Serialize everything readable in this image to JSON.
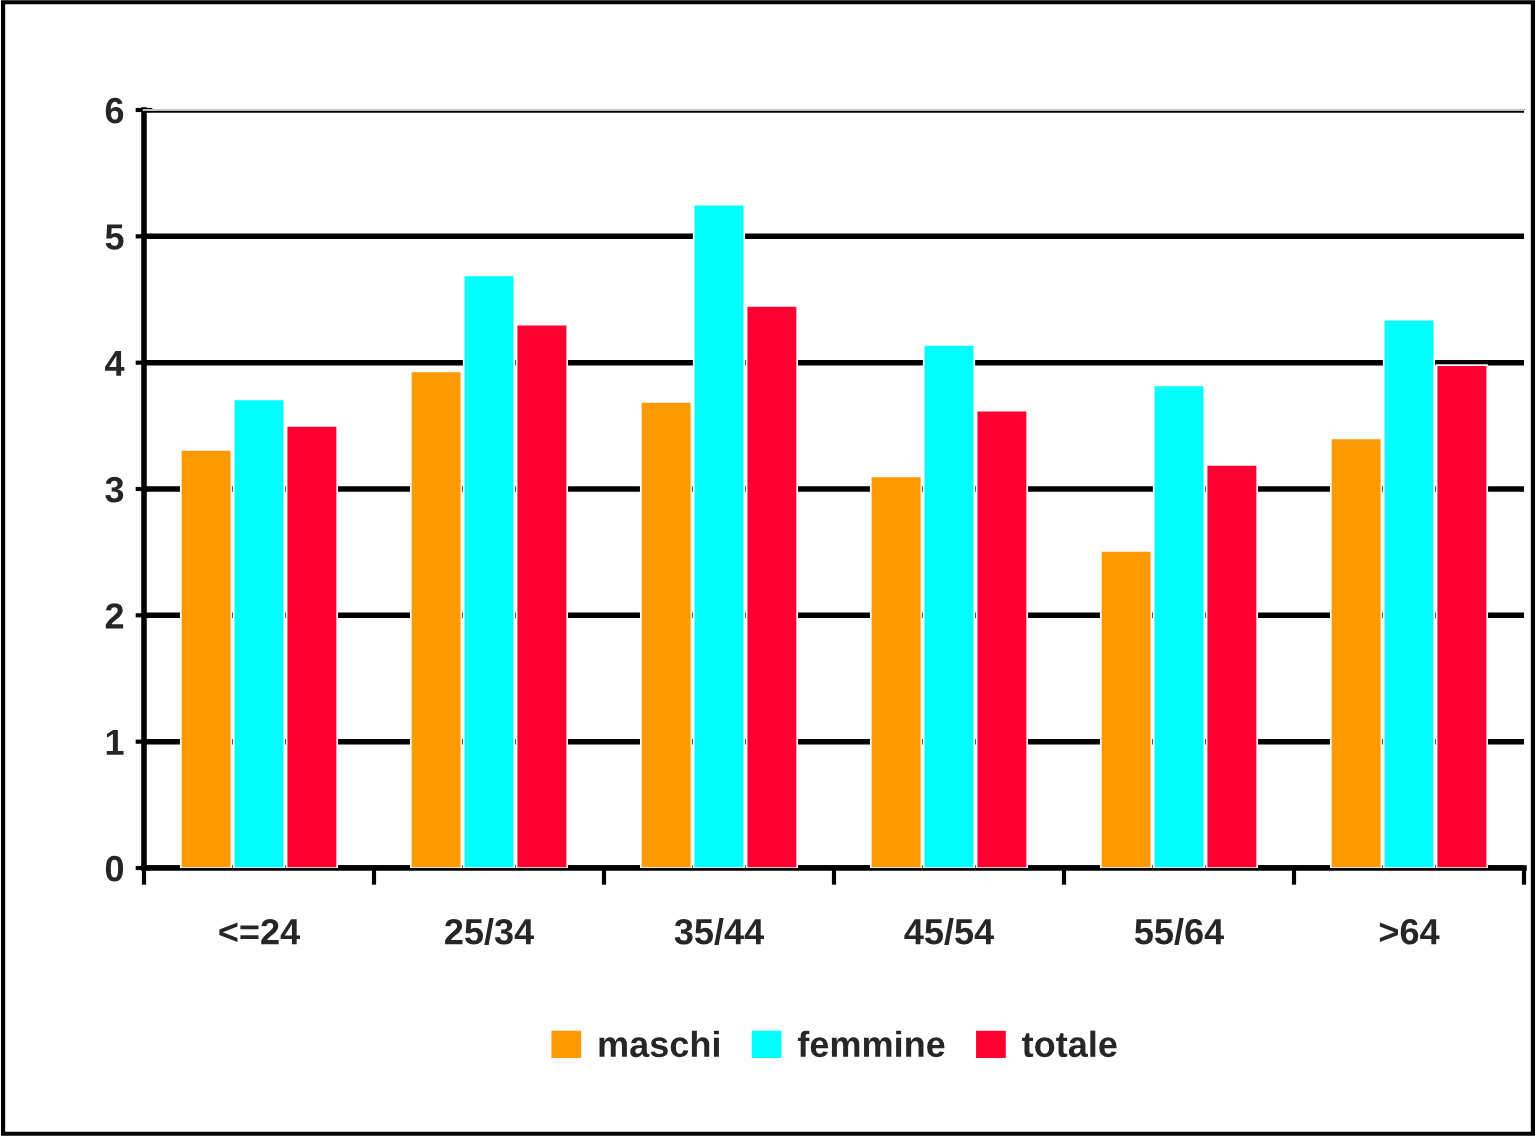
{
  "chart_data": {
    "type": "bar",
    "categories": [
      "<=24",
      "25/34",
      "35/44",
      "45/54",
      "55/64",
      ">64"
    ],
    "series": [
      {
        "name": "maschi",
        "color": "#ff9900",
        "values": [
          3.31,
          3.93,
          3.69,
          3.1,
          2.51,
          3.4
        ]
      },
      {
        "name": "femmine",
        "color": "#00ffff",
        "values": [
          3.71,
          4.69,
          5.25,
          4.14,
          3.82,
          4.34
        ]
      },
      {
        "name": "totale",
        "color": "#ff0033",
        "values": [
          3.5,
          4.3,
          4.45,
          3.62,
          3.19,
          3.98
        ]
      }
    ],
    "ylim": [
      0,
      6
    ],
    "yticks": [
      0,
      1,
      2,
      3,
      4,
      5,
      6
    ],
    "grid": "y",
    "legend": "bottom"
  }
}
